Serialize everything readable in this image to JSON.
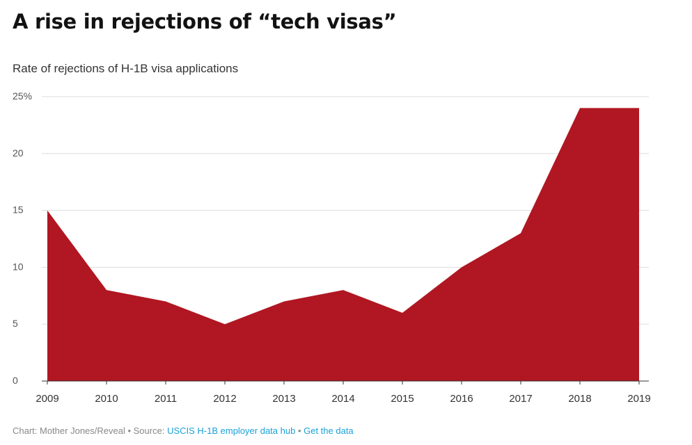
{
  "title": "A rise in rejections of “tech visas”",
  "subtitle": "Rate of rejections of H-1B visa applications",
  "colors": {
    "area": "#b01722",
    "grid": "#dddddd",
    "axis": "#333333",
    "tick_text": "#555555",
    "link": "#1ba1d6"
  },
  "chart_data": {
    "type": "area",
    "x": [
      2009,
      2010,
      2011,
      2012,
      2013,
      2014,
      2015,
      2016,
      2017,
      2018,
      2019
    ],
    "series": [
      {
        "values": [
          15,
          8,
          7,
          5,
          7,
          8,
          6,
          10,
          13,
          24,
          24
        ]
      }
    ],
    "y_ticks": [
      0,
      5,
      10,
      15,
      20,
      25
    ],
    "y_tick_labels": [
      "0",
      "5",
      "10",
      "15",
      "20",
      "25%"
    ],
    "x_tick_labels": [
      "2009",
      "2010",
      "2011",
      "2012",
      "2013",
      "2014",
      "2015",
      "2016",
      "2017",
      "2018",
      "2019"
    ],
    "ylim": [
      0,
      25
    ],
    "xlim": [
      2009,
      2019
    ],
    "grid": true,
    "xlabel": "",
    "ylabel": ""
  },
  "footer": {
    "credit": "Chart: Mother Jones/Reveal",
    "separator1": " • Source: ",
    "source_link": "USCIS H-1B employer data hub",
    "separator2": " • ",
    "data_link": "Get the data"
  }
}
